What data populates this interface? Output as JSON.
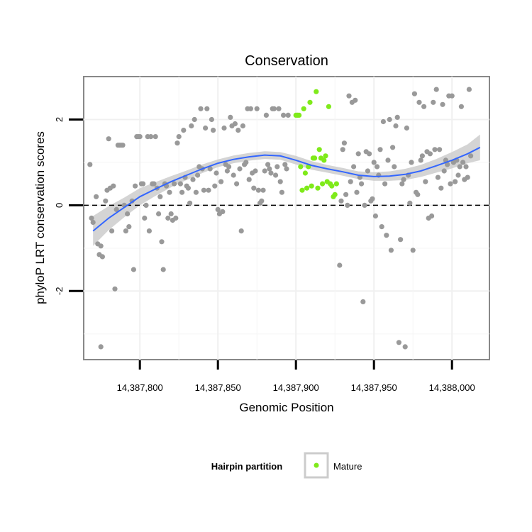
{
  "chart_data": {
    "type": "scatter",
    "title": "Conservation",
    "xlabel": "Genomic Position",
    "ylabel": "phyloP LRT conservation scores",
    "xlim": [
      14387764,
      14388024
    ],
    "ylim": [
      -3.6,
      3.0
    ],
    "x_ticks": [
      14387800,
      14387850,
      14387900,
      14387950,
      14388000
    ],
    "x_tick_labels": [
      "14,387,800",
      "14,387,850",
      "14,387,900",
      "14,387,950",
      "14,388,000"
    ],
    "y_ticks": [
      -2,
      0,
      2
    ],
    "y_tick_labels": [
      "-2",
      "0",
      "2"
    ],
    "minor_y_gridlines": [
      -3,
      -1,
      1
    ],
    "reference_line_y": 0,
    "grid": true,
    "legend": {
      "title": "Hairpin partition",
      "position": "bottom",
      "entries": [
        "Mature"
      ]
    },
    "colors": {
      "other": "#999999",
      "mature": "#7FEA1A",
      "smooth": "#3366FF",
      "band": "#CCCCCC"
    },
    "series": [
      {
        "name": "",
        "role": "other",
        "points": [
          [
            14387768,
            0.95
          ],
          [
            14387769,
            -0.3
          ],
          [
            14387770,
            -0.4
          ],
          [
            14387772,
            0.2
          ],
          [
            14387773,
            -0.9
          ],
          [
            14387774,
            -1.15
          ],
          [
            14387775,
            -0.95
          ],
          [
            14387776,
            -1.2
          ],
          [
            14387775,
            -3.3
          ],
          [
            14387778,
            0.1
          ],
          [
            14387779,
            0.35
          ],
          [
            14387780,
            1.55
          ],
          [
            14387781,
            0.4
          ],
          [
            14387782,
            -0.6
          ],
          [
            14387783,
            0.45
          ],
          [
            14387784,
            -1.95
          ],
          [
            14387785,
            -0.1
          ],
          [
            14387786,
            1.4
          ],
          [
            14387787,
            1.4
          ],
          [
            14387788,
            1.4
          ],
          [
            14387789,
            1.4
          ],
          [
            14387790,
            0.0
          ],
          [
            14387791,
            -0.6
          ],
          [
            14387792,
            -0.2
          ],
          [
            14387793,
            -0.5
          ],
          [
            14387795,
            0.1
          ],
          [
            14387796,
            -1.5
          ],
          [
            14387797,
            0.45
          ],
          [
            14387798,
            1.6
          ],
          [
            14387799,
            1.6
          ],
          [
            14387800,
            1.6
          ],
          [
            14387801,
            0.5
          ],
          [
            14387802,
            0.5
          ],
          [
            14387803,
            -0.3
          ],
          [
            14387804,
            0.0
          ],
          [
            14387805,
            1.6
          ],
          [
            14387806,
            -0.6
          ],
          [
            14387807,
            1.6
          ],
          [
            14387808,
            0.5
          ],
          [
            14387809,
            0.5
          ],
          [
            14387810,
            1.6
          ],
          [
            14387811,
            0.4
          ],
          [
            14387812,
            -0.2
          ],
          [
            14387813,
            0.2
          ],
          [
            14387814,
            -0.85
          ],
          [
            14387815,
            -1.5
          ],
          [
            14387816,
            0.5
          ],
          [
            14387817,
            0.45
          ],
          [
            14387818,
            -0.3
          ],
          [
            14387819,
            0.3
          ],
          [
            14387820,
            -0.2
          ],
          [
            14387821,
            -0.35
          ],
          [
            14387822,
            0.5
          ],
          [
            14387823,
            -0.3
          ],
          [
            14387824,
            1.45
          ],
          [
            14387825,
            1.6
          ],
          [
            14387826,
            0.5
          ],
          [
            14387827,
            0.3
          ],
          [
            14387828,
            1.75
          ],
          [
            14387829,
            0.65
          ],
          [
            14387830,
            0.45
          ],
          [
            14387831,
            0.4
          ],
          [
            14387832,
            0.05
          ],
          [
            14387833,
            1.85
          ],
          [
            14387834,
            0.6
          ],
          [
            14387835,
            2.0
          ],
          [
            14387836,
            0.3
          ],
          [
            14387837,
            0.7
          ],
          [
            14387838,
            0.9
          ],
          [
            14387839,
            2.25
          ],
          [
            14387840,
            0.85
          ],
          [
            14387841,
            0.35
          ],
          [
            14387842,
            1.8
          ],
          [
            14387843,
            2.25
          ],
          [
            14387844,
            0.35
          ],
          [
            14387845,
            0.85
          ],
          [
            14387846,
            2.0
          ],
          [
            14387847,
            1.75
          ],
          [
            14387848,
            0.45
          ],
          [
            14387849,
            0.75
          ],
          [
            14387850,
            -0.1
          ],
          [
            14387851,
            -0.2
          ],
          [
            14387852,
            0.55
          ],
          [
            14387853,
            -0.15
          ],
          [
            14387854,
            1.8
          ],
          [
            14387855,
            0.95
          ],
          [
            14387856,
            0.8
          ],
          [
            14387857,
            0.9
          ],
          [
            14387858,
            2.05
          ],
          [
            14387859,
            1.85
          ],
          [
            14387860,
            0.7
          ],
          [
            14387861,
            1.9
          ],
          [
            14387862,
            0.5
          ],
          [
            14387863,
            1.75
          ],
          [
            14387864,
            0.85
          ],
          [
            14387865,
            -0.6
          ],
          [
            14387866,
            1.85
          ],
          [
            14387867,
            0.95
          ],
          [
            14387868,
            1.0
          ],
          [
            14387869,
            2.25
          ],
          [
            14387870,
            0.6
          ],
          [
            14387871,
            2.25
          ],
          [
            14387872,
            0.75
          ],
          [
            14387873,
            0.4
          ],
          [
            14387874,
            0.8
          ],
          [
            14387875,
            2.25
          ],
          [
            14387876,
            0.35
          ],
          [
            14387877,
            0.05
          ],
          [
            14387878,
            0.1
          ],
          [
            14387879,
            0.35
          ],
          [
            14387880,
            0.8
          ],
          [
            14387881,
            2.1
          ],
          [
            14387882,
            0.95
          ],
          [
            14387883,
            0.85
          ],
          [
            14387884,
            0.75
          ],
          [
            14387885,
            2.25
          ],
          [
            14387886,
            2.25
          ],
          [
            14387887,
            0.7
          ],
          [
            14387888,
            0.9
          ],
          [
            14387889,
            2.25
          ],
          [
            14387890,
            0.55
          ],
          [
            14387891,
            0.3
          ],
          [
            14387892,
            2.1
          ],
          [
            14387893,
            0.95
          ],
          [
            14387894,
            0.85
          ],
          [
            14387895,
            2.1
          ],
          [
            14387928,
            -1.4
          ],
          [
            14387929,
            0.1
          ],
          [
            14387930,
            1.3
          ],
          [
            14387931,
            1.45
          ],
          [
            14387932,
            0.25
          ],
          [
            14387933,
            0.0
          ],
          [
            14387934,
            2.55
          ],
          [
            14387935,
            0.55
          ],
          [
            14387936,
            2.4
          ],
          [
            14387937,
            0.9
          ],
          [
            14387938,
            2.45
          ],
          [
            14387939,
            0.3
          ],
          [
            14387940,
            1.2
          ],
          [
            14387941,
            0.65
          ],
          [
            14387942,
            0.5
          ],
          [
            14387943,
            -2.25
          ],
          [
            14387944,
            0.0
          ],
          [
            14387945,
            1.25
          ],
          [
            14387946,
            0.8
          ],
          [
            14387947,
            1.2
          ],
          [
            14387948,
            0.1
          ],
          [
            14387949,
            0.15
          ],
          [
            14387950,
            1.0
          ],
          [
            14387951,
            -0.25
          ],
          [
            14387952,
            0.9
          ],
          [
            14387953,
            0.7
          ],
          [
            14387954,
            1.3
          ],
          [
            14387955,
            -0.5
          ],
          [
            14387956,
            1.95
          ],
          [
            14387957,
            0.5
          ],
          [
            14387958,
            -0.7
          ],
          [
            14387959,
            1.05
          ],
          [
            14387960,
            2.0
          ],
          [
            14387961,
            -1.05
          ],
          [
            14387962,
            1.35
          ],
          [
            14387963,
            0.9
          ],
          [
            14387964,
            1.85
          ],
          [
            14387965,
            2.05
          ],
          [
            14387966,
            -3.2
          ],
          [
            14387967,
            -0.8
          ],
          [
            14387968,
            0.5
          ],
          [
            14387969,
            0.6
          ],
          [
            14387970,
            -3.3
          ],
          [
            14387971,
            1.8
          ],
          [
            14387972,
            0.7
          ],
          [
            14387973,
            0.05
          ],
          [
            14387974,
            1.0
          ],
          [
            14387975,
            -1.05
          ],
          [
            14387976,
            2.6
          ],
          [
            14387977,
            0.3
          ],
          [
            14387978,
            0.25
          ],
          [
            14387979,
            2.4
          ],
          [
            14387980,
            1.05
          ],
          [
            14387981,
            1.15
          ],
          [
            14387982,
            2.3
          ],
          [
            14387983,
            0.55
          ],
          [
            14387984,
            1.25
          ],
          [
            14387985,
            -0.3
          ],
          [
            14387986,
            1.2
          ],
          [
            14387987,
            -0.25
          ],
          [
            14387988,
            2.4
          ],
          [
            14387989,
            1.3
          ],
          [
            14387990,
            2.7
          ],
          [
            14387991,
            0.65
          ],
          [
            14387992,
            1.3
          ],
          [
            14387993,
            0.4
          ],
          [
            14387994,
            2.35
          ],
          [
            14387995,
            0.8
          ],
          [
            14387996,
            1.05
          ],
          [
            14387997,
            0.95
          ],
          [
            14387998,
            2.55
          ],
          [
            14387999,
            0.5
          ],
          [
            14388000,
            2.55
          ],
          [
            14388001,
            1.0
          ],
          [
            14388002,
            0.55
          ],
          [
            14388003,
            1.05
          ],
          [
            14388004,
            0.7
          ],
          [
            14388005,
            0.9
          ],
          [
            14388006,
            2.3
          ],
          [
            14388007,
            1.0
          ],
          [
            14388008,
            0.6
          ],
          [
            14388009,
            0.9
          ],
          [
            14388010,
            0.65
          ],
          [
            14388011,
            2.7
          ],
          [
            14388012,
            1.15
          ]
        ]
      },
      {
        "name": "Mature",
        "role": "mature",
        "points": [
          [
            14387900,
            2.1
          ],
          [
            14387901,
            2.1
          ],
          [
            14387902,
            2.1
          ],
          [
            14387903,
            0.9
          ],
          [
            14387904,
            0.35
          ],
          [
            14387905,
            2.25
          ],
          [
            14387906,
            0.75
          ],
          [
            14387907,
            0.4
          ],
          [
            14387908,
            0.9
          ],
          [
            14387909,
            2.4
          ],
          [
            14387910,
            0.45
          ],
          [
            14387911,
            1.1
          ],
          [
            14387912,
            1.1
          ],
          [
            14387913,
            2.65
          ],
          [
            14387914,
            0.4
          ],
          [
            14387915,
            1.3
          ],
          [
            14387916,
            1.1
          ],
          [
            14387917,
            0.5
          ],
          [
            14387918,
            1.05
          ],
          [
            14387919,
            1.15
          ],
          [
            14387920,
            0.55
          ],
          [
            14387921,
            2.3
          ],
          [
            14387922,
            0.5
          ],
          [
            14387923,
            0.45
          ],
          [
            14387924,
            0.2
          ],
          [
            14387925,
            0.25
          ],
          [
            14387926,
            0.5
          ]
        ]
      }
    ],
    "smooth_line": {
      "x": [
        14387770,
        14387780,
        14387790,
        14387800,
        14387810,
        14387820,
        14387830,
        14387840,
        14387850,
        14387860,
        14387870,
        14387880,
        14387890,
        14387900,
        14387910,
        14387920,
        14387930,
        14387940,
        14387950,
        14387960,
        14387970,
        14387980,
        14387990,
        14388000,
        14388010,
        14388018
      ],
      "y": [
        -0.6,
        -0.3,
        -0.05,
        0.2,
        0.38,
        0.55,
        0.7,
        0.85,
        0.98,
        1.07,
        1.13,
        1.17,
        1.15,
        1.05,
        0.93,
        0.85,
        0.78,
        0.7,
        0.67,
        0.68,
        0.72,
        0.8,
        0.92,
        1.05,
        1.2,
        1.35
      ],
      "lower": [
        -0.95,
        -0.58,
        -0.28,
        0.0,
        0.22,
        0.42,
        0.59,
        0.75,
        0.89,
        0.98,
        1.04,
        1.08,
        1.06,
        0.95,
        0.83,
        0.76,
        0.69,
        0.61,
        0.57,
        0.57,
        0.59,
        0.66,
        0.76,
        0.86,
        0.98,
        1.05
      ],
      "upper": [
        -0.25,
        -0.02,
        0.18,
        0.4,
        0.54,
        0.68,
        0.81,
        0.95,
        1.07,
        1.16,
        1.22,
        1.26,
        1.24,
        1.15,
        1.03,
        0.94,
        0.87,
        0.79,
        0.77,
        0.79,
        0.85,
        0.94,
        1.08,
        1.24,
        1.42,
        1.65
      ]
    }
  }
}
